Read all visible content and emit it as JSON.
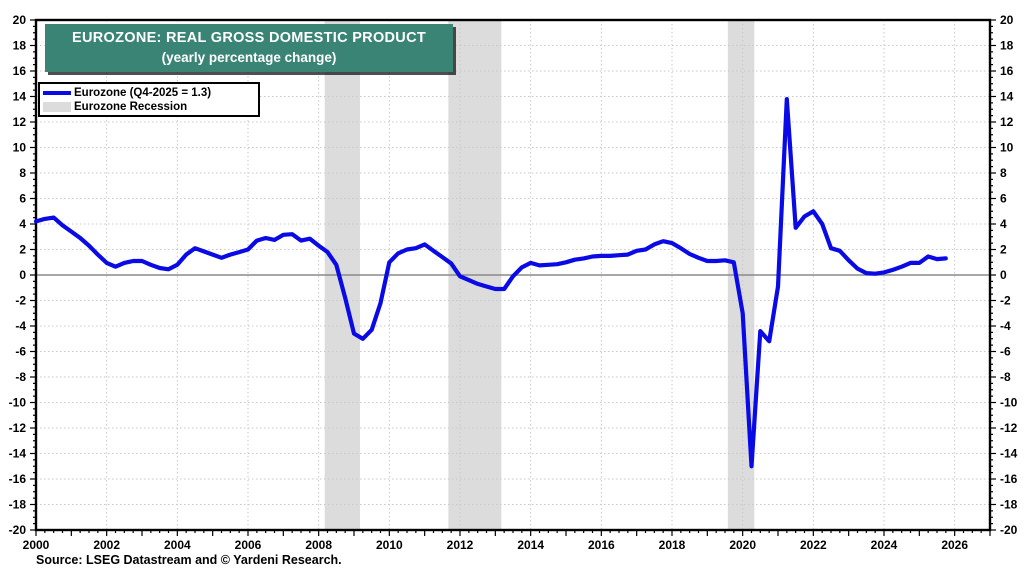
{
  "header": {
    "title_line1": "EUROZONE: REAL GROSS DOMESTIC PRODUCT",
    "title_line2": "(yearly percentage change)"
  },
  "legend": {
    "series_label": "Eurozone (Q4-2025 = 1.3)",
    "recession_label": "Eurozone Recession"
  },
  "footer": {
    "source": "Source: LSEG Datastream and © Yardeni Research."
  },
  "colors": {
    "title_bg": "#3a8476",
    "title_text": "#ffffff",
    "line": "#0a0ae6",
    "recession_band": "#dcdcdc",
    "grid": "#c9c9c9",
    "zero_line": "#8a8a8a",
    "axis": "#000000",
    "text": "#000000"
  },
  "chart_data": {
    "type": "line",
    "title": "EUROZONE: REAL GROSS DOMESTIC PRODUCT (yearly percentage change)",
    "xlabel": "",
    "ylabel": "",
    "x_range": [
      2000,
      2027
    ],
    "y_range": [
      -20,
      20
    ],
    "y_tick_step": 2,
    "y_minor_step": 0.5,
    "x_label_step_years": 2,
    "x_minor_step_years": 0.25,
    "grid": "dotted",
    "legend_position": "top-left",
    "y_tick_labels": [
      "20",
      "18",
      "16",
      "14",
      "12",
      "10",
      "8",
      "6",
      "4",
      "2",
      "0",
      "-2",
      "-4",
      "-6",
      "-8",
      "-10",
      "-12",
      "-14",
      "-16",
      "-18",
      "-20"
    ],
    "x_tick_labels": [
      "2000",
      "2002",
      "2004",
      "2006",
      "2008",
      "2010",
      "2012",
      "2014",
      "2016",
      "2018",
      "2020",
      "2022",
      "2024",
      "2026"
    ],
    "recession_bands": [
      {
        "from": 2008.17,
        "to": 2009.17
      },
      {
        "from": 2011.67,
        "to": 2013.17
      },
      {
        "from": 2019.58,
        "to": 2020.33
      }
    ],
    "series": [
      {
        "name": "Eurozone (Q4-2025 = 1.3)",
        "frequency": "quarterly",
        "start_year": 2000,
        "last_point_label": "Q4-2025 = 1.3",
        "values": [
          4.2,
          4.4,
          4.5,
          3.9,
          3.4,
          2.9,
          2.3,
          1.6,
          0.95,
          0.65,
          0.95,
          1.1,
          1.1,
          0.8,
          0.55,
          0.45,
          0.8,
          1.6,
          2.1,
          1.85,
          1.6,
          1.35,
          1.6,
          1.8,
          2.0,
          2.7,
          2.9,
          2.75,
          3.15,
          3.2,
          2.7,
          2.85,
          2.3,
          1.8,
          0.8,
          -1.8,
          -4.6,
          -5.0,
          -4.3,
          -2.2,
          1.0,
          1.7,
          2.0,
          2.1,
          2.4,
          1.9,
          1.4,
          0.9,
          -0.1,
          -0.4,
          -0.7,
          -0.9,
          -1.1,
          -1.1,
          -0.1,
          0.6,
          0.95,
          0.75,
          0.8,
          0.85,
          1.0,
          1.2,
          1.3,
          1.45,
          1.5,
          1.5,
          1.55,
          1.6,
          1.9,
          2.0,
          2.4,
          2.65,
          2.5,
          2.1,
          1.65,
          1.35,
          1.1,
          1.1,
          1.15,
          1.0,
          -3.0,
          -15.0,
          -4.4,
          -5.2,
          -0.9,
          13.8,
          3.7,
          4.6,
          5.0,
          4.0,
          2.1,
          1.9,
          1.15,
          0.5,
          0.15,
          0.1,
          0.2,
          0.4,
          0.65,
          0.95,
          0.95,
          1.45,
          1.25,
          1.3
        ]
      }
    ]
  }
}
